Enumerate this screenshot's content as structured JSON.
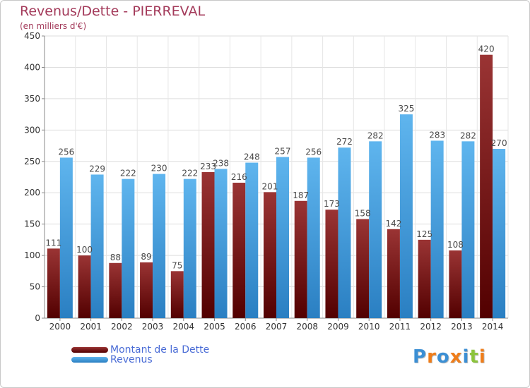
{
  "header": {
    "title": "Revenus/Dette - PIERREVAL",
    "subtitle": "(en milliers d'€)"
  },
  "legend": {
    "items": [
      {
        "label": "Montant de la Dette",
        "color": "#7a0c0c"
      },
      {
        "label": "Revenus",
        "color": "#3d9de0"
      }
    ]
  },
  "logo": {
    "text": "Proxiti",
    "letter_colors": [
      "#3b8fd4",
      "#ef7d1a",
      "#3b8fd4",
      "#ef7d1a",
      "#3b8fd4",
      "#8cc43c",
      "#ef7d1a"
    ]
  },
  "chart_data": {
    "type": "bar",
    "categories": [
      "2000",
      "2001",
      "2002",
      "2003",
      "2004",
      "2005",
      "2006",
      "2007",
      "2008",
      "2009",
      "2010",
      "2011",
      "2012",
      "2013",
      "2014"
    ],
    "series": [
      {
        "name": "Montant de la Dette",
        "color": "#7a0c0c",
        "values": [
          111,
          100,
          88,
          89,
          75,
          233,
          216,
          201,
          187,
          173,
          158,
          142,
          125,
          108,
          420
        ]
      },
      {
        "name": "Revenus",
        "color": "#3d9de0",
        "values": [
          256,
          229,
          222,
          230,
          222,
          238,
          248,
          257,
          256,
          272,
          282,
          325,
          283,
          282,
          270
        ]
      }
    ],
    "title": "Revenus/Dette - PIERREVAL",
    "ylabel": "(en milliers d'€)",
    "ylim": [
      0,
      450
    ],
    "yticks": [
      0,
      50,
      100,
      150,
      200,
      250,
      300,
      350,
      400,
      450
    ],
    "grid": true,
    "legend_position": "bottom-left"
  }
}
